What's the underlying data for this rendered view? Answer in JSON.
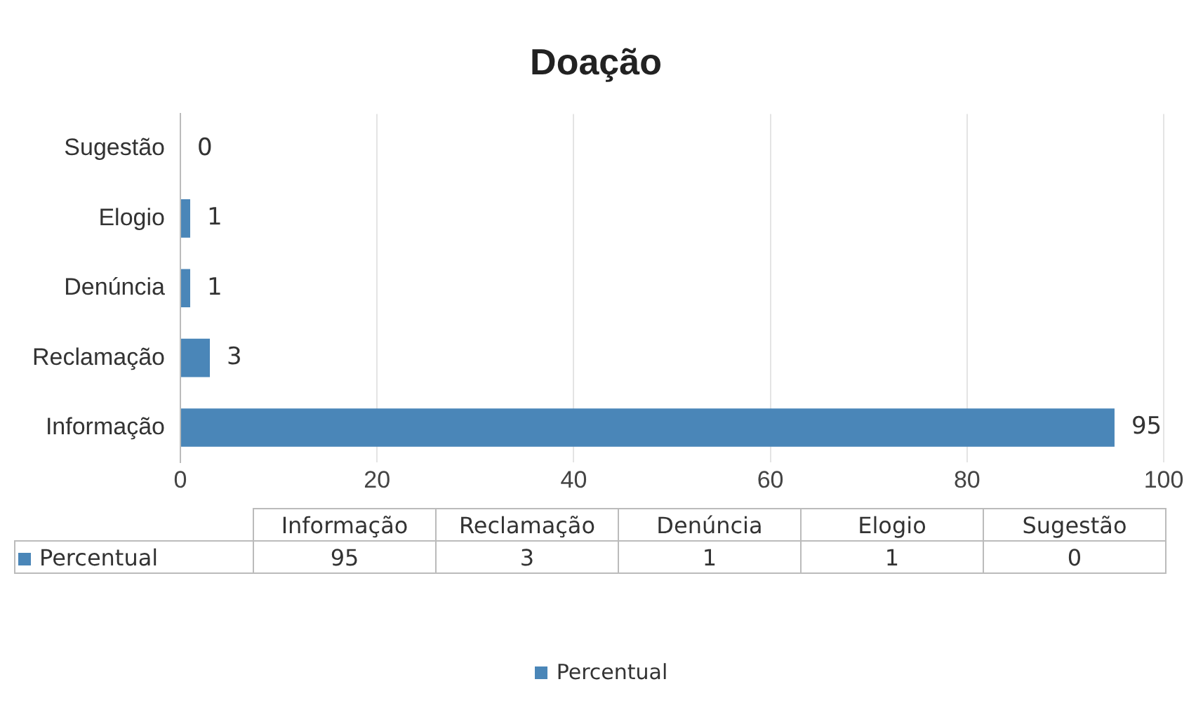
{
  "chart_data": {
    "type": "bar",
    "orientation": "horizontal",
    "title": "Doação",
    "categories": [
      "Sugestão",
      "Elogio",
      "Denúncia",
      "Reclamação",
      "Informação"
    ],
    "series": [
      {
        "name": "Percentual",
        "color": "#4a86b8",
        "values": [
          0,
          1,
          1,
          3,
          95
        ]
      }
    ],
    "annotations": [
      "95",
      "3",
      "1",
      "1",
      "0"
    ],
    "xlim": [
      0,
      100
    ],
    "xticks": [
      0,
      20,
      40,
      60,
      80,
      100
    ],
    "grid": "x",
    "legend": "bottom",
    "data_labels": true
  }
}
